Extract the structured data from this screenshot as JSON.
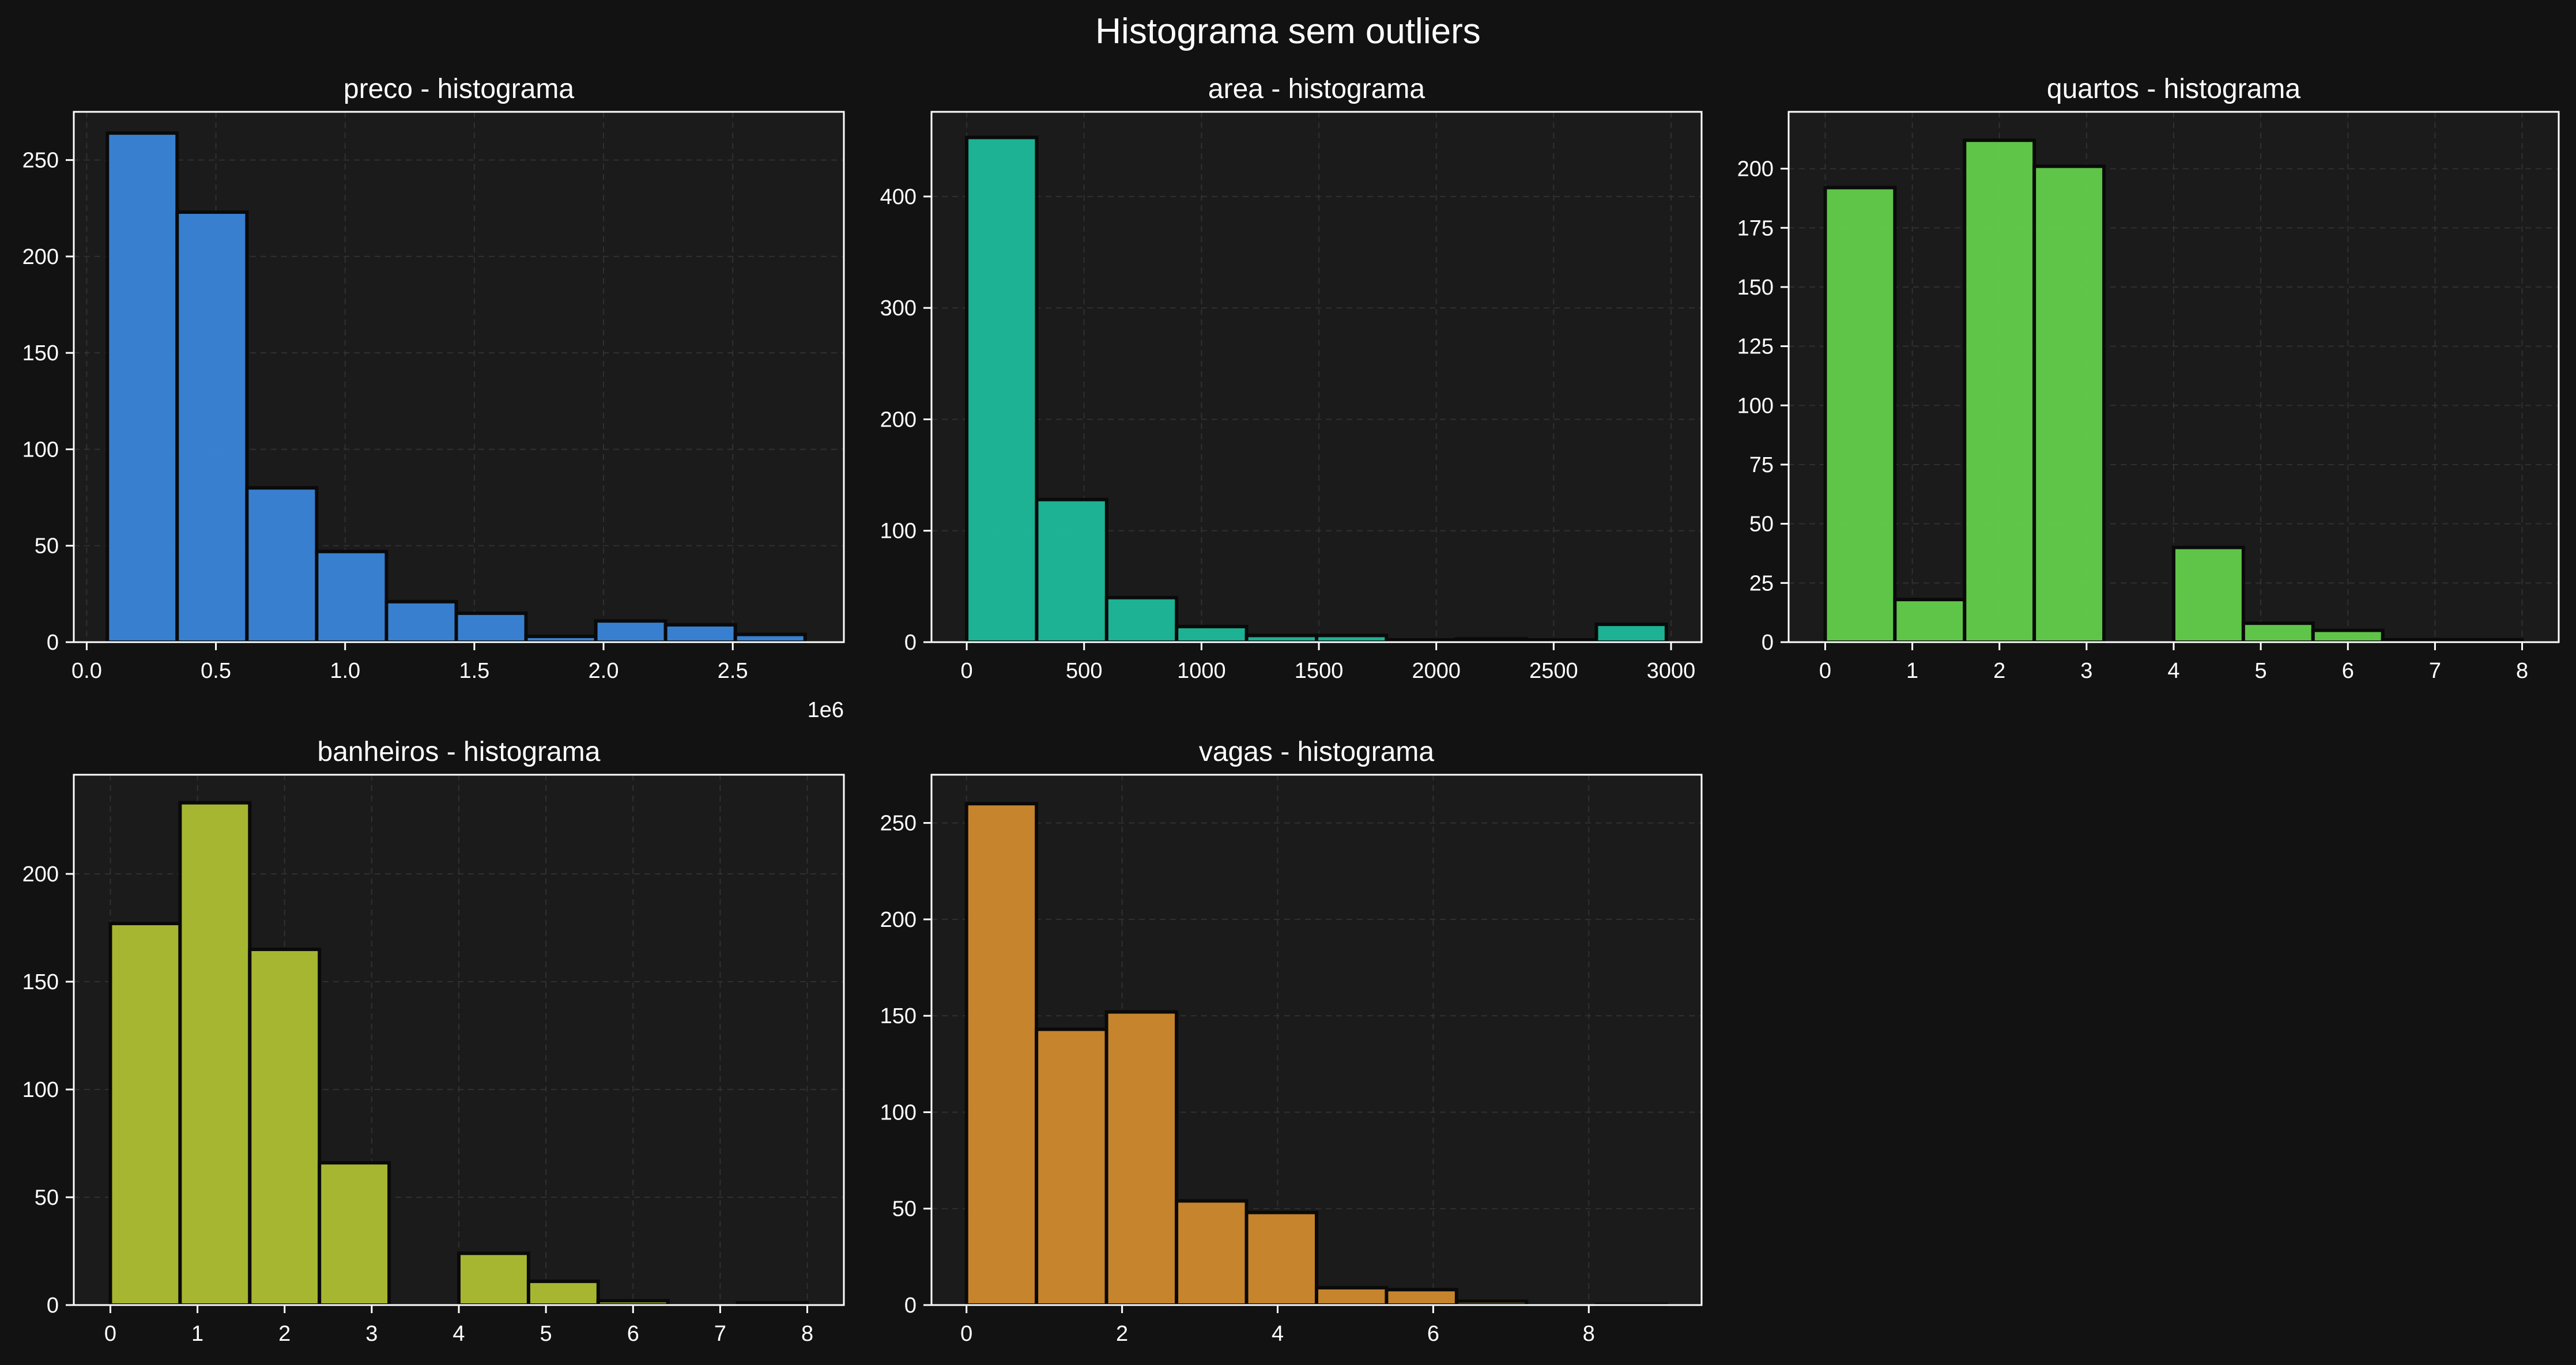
{
  "figure": {
    "title": "Histograma sem outliers",
    "background": "#121212",
    "axes_background": "#1b1b1b",
    "spine_color": "#ffffff",
    "text_color": "#ffffff",
    "grid_color": "#3a3a3a",
    "bar_edge": "#0a0a0a"
  },
  "chart_data": [
    {
      "type": "bar",
      "title": "preco - histograma",
      "color": "#3a86d9",
      "xlim": [
        -0.05,
        2.93
      ],
      "ylim": [
        0,
        275
      ],
      "xticks": [
        0.0,
        0.5,
        1.0,
        1.5,
        2.0,
        2.5
      ],
      "xticklabels": [
        "0.0",
        "0.5",
        "1.0",
        "1.5",
        "2.0",
        "2.5"
      ],
      "yticks": [
        0,
        50,
        100,
        150,
        200,
        250
      ],
      "offset_text": "1e6",
      "bins": [
        {
          "x0": 0.08,
          "x1": 0.35,
          "value": 264
        },
        {
          "x0": 0.35,
          "x1": 0.62,
          "value": 223
        },
        {
          "x0": 0.62,
          "x1": 0.89,
          "value": 80
        },
        {
          "x0": 0.89,
          "x1": 1.16,
          "value": 47
        },
        {
          "x0": 1.16,
          "x1": 1.43,
          "value": 21
        },
        {
          "x0": 1.43,
          "x1": 1.7,
          "value": 15
        },
        {
          "x0": 1.7,
          "x1": 1.97,
          "value": 3
        },
        {
          "x0": 1.97,
          "x1": 2.24,
          "value": 11
        },
        {
          "x0": 2.24,
          "x1": 2.51,
          "value": 9
        },
        {
          "x0": 2.51,
          "x1": 2.78,
          "value": 4
        }
      ]
    },
    {
      "type": "bar",
      "title": "area - histograma",
      "color": "#1dbb9a",
      "xlim": [
        -150,
        3130
      ],
      "ylim": [
        0,
        476
      ],
      "xticks": [
        0,
        500,
        1000,
        1500,
        2000,
        2500,
        3000
      ],
      "xticklabels": [
        "0",
        "500",
        "1000",
        "1500",
        "2000",
        "2500",
        "3000"
      ],
      "yticks": [
        0,
        100,
        200,
        300,
        400
      ],
      "bins": [
        {
          "x0": 0,
          "x1": 298,
          "value": 453
        },
        {
          "x0": 298,
          "x1": 596,
          "value": 128
        },
        {
          "x0": 596,
          "x1": 894,
          "value": 40
        },
        {
          "x0": 894,
          "x1": 1192,
          "value": 14
        },
        {
          "x0": 1192,
          "x1": 1490,
          "value": 6
        },
        {
          "x0": 1490,
          "x1": 1788,
          "value": 6
        },
        {
          "x0": 1788,
          "x1": 2086,
          "value": 2
        },
        {
          "x0": 2086,
          "x1": 2384,
          "value": 3
        },
        {
          "x0": 2384,
          "x1": 2682,
          "value": 2
        },
        {
          "x0": 2682,
          "x1": 2980,
          "value": 16
        }
      ]
    },
    {
      "type": "bar",
      "title": "quartos - histograma",
      "color": "#63cf4b",
      "xlim": [
        -0.42,
        8.42
      ],
      "ylim": [
        0,
        224
      ],
      "xticks": [
        0,
        1,
        2,
        3,
        4,
        5,
        6,
        7,
        8
      ],
      "xticklabels": [
        "0",
        "1",
        "2",
        "3",
        "4",
        "5",
        "6",
        "7",
        "8"
      ],
      "yticks": [
        0,
        25,
        50,
        75,
        100,
        125,
        150,
        175,
        200
      ],
      "bins": [
        {
          "x0": 0.0,
          "x1": 0.8,
          "value": 192
        },
        {
          "x0": 0.8,
          "x1": 1.6,
          "value": 18
        },
        {
          "x0": 1.6,
          "x1": 2.4,
          "value": 212
        },
        {
          "x0": 2.4,
          "x1": 3.2,
          "value": 201
        },
        {
          "x0": 3.2,
          "x1": 4.0,
          "value": 0
        },
        {
          "x0": 4.0,
          "x1": 4.8,
          "value": 40
        },
        {
          "x0": 4.8,
          "x1": 5.6,
          "value": 8
        },
        {
          "x0": 5.6,
          "x1": 6.4,
          "value": 5
        },
        {
          "x0": 6.4,
          "x1": 7.2,
          "value": 1
        },
        {
          "x0": 7.2,
          "x1": 8.0,
          "value": 1
        }
      ]
    },
    {
      "type": "bar",
      "title": "banheiros - histograma",
      "color": "#afbf33",
      "xlim": [
        -0.42,
        8.42
      ],
      "ylim": [
        0,
        246
      ],
      "xticks": [
        0,
        1,
        2,
        3,
        4,
        5,
        6,
        7,
        8
      ],
      "xticklabels": [
        "0",
        "1",
        "2",
        "3",
        "4",
        "5",
        "6",
        "7",
        "8"
      ],
      "yticks": [
        0,
        50,
        100,
        150,
        200
      ],
      "bins": [
        {
          "x0": 0.0,
          "x1": 0.8,
          "value": 177
        },
        {
          "x0": 0.8,
          "x1": 1.6,
          "value": 233
        },
        {
          "x0": 1.6,
          "x1": 2.4,
          "value": 165
        },
        {
          "x0": 2.4,
          "x1": 3.2,
          "value": 66
        },
        {
          "x0": 3.2,
          "x1": 4.0,
          "value": 0
        },
        {
          "x0": 4.0,
          "x1": 4.8,
          "value": 24
        },
        {
          "x0": 4.8,
          "x1": 5.6,
          "value": 11
        },
        {
          "x0": 5.6,
          "x1": 6.4,
          "value": 2
        },
        {
          "x0": 6.4,
          "x1": 7.2,
          "value": 0
        },
        {
          "x0": 7.2,
          "x1": 8.0,
          "value": 1
        }
      ]
    },
    {
      "type": "bar",
      "title": "vagas - histograma",
      "color": "#d08a2d",
      "xlim": [
        -0.45,
        9.45
      ],
      "ylim": [
        0,
        275
      ],
      "xticks": [
        0,
        2,
        4,
        6,
        8
      ],
      "xticklabels": [
        "0",
        "2",
        "4",
        "6",
        "8"
      ],
      "yticks": [
        0,
        50,
        100,
        150,
        200,
        250
      ],
      "bins": [
        {
          "x0": 0.0,
          "x1": 0.9,
          "value": 260
        },
        {
          "x0": 0.9,
          "x1": 1.8,
          "value": 143
        },
        {
          "x0": 1.8,
          "x1": 2.7,
          "value": 152
        },
        {
          "x0": 2.7,
          "x1": 3.6,
          "value": 54
        },
        {
          "x0": 3.6,
          "x1": 4.5,
          "value": 48
        },
        {
          "x0": 4.5,
          "x1": 5.4,
          "value": 9
        },
        {
          "x0": 5.4,
          "x1": 6.3,
          "value": 8
        },
        {
          "x0": 6.3,
          "x1": 7.2,
          "value": 2
        },
        {
          "x0": 7.2,
          "x1": 8.1,
          "value": 0
        },
        {
          "x0": 8.1,
          "x1": 9.0,
          "value": 0.3
        }
      ]
    }
  ]
}
